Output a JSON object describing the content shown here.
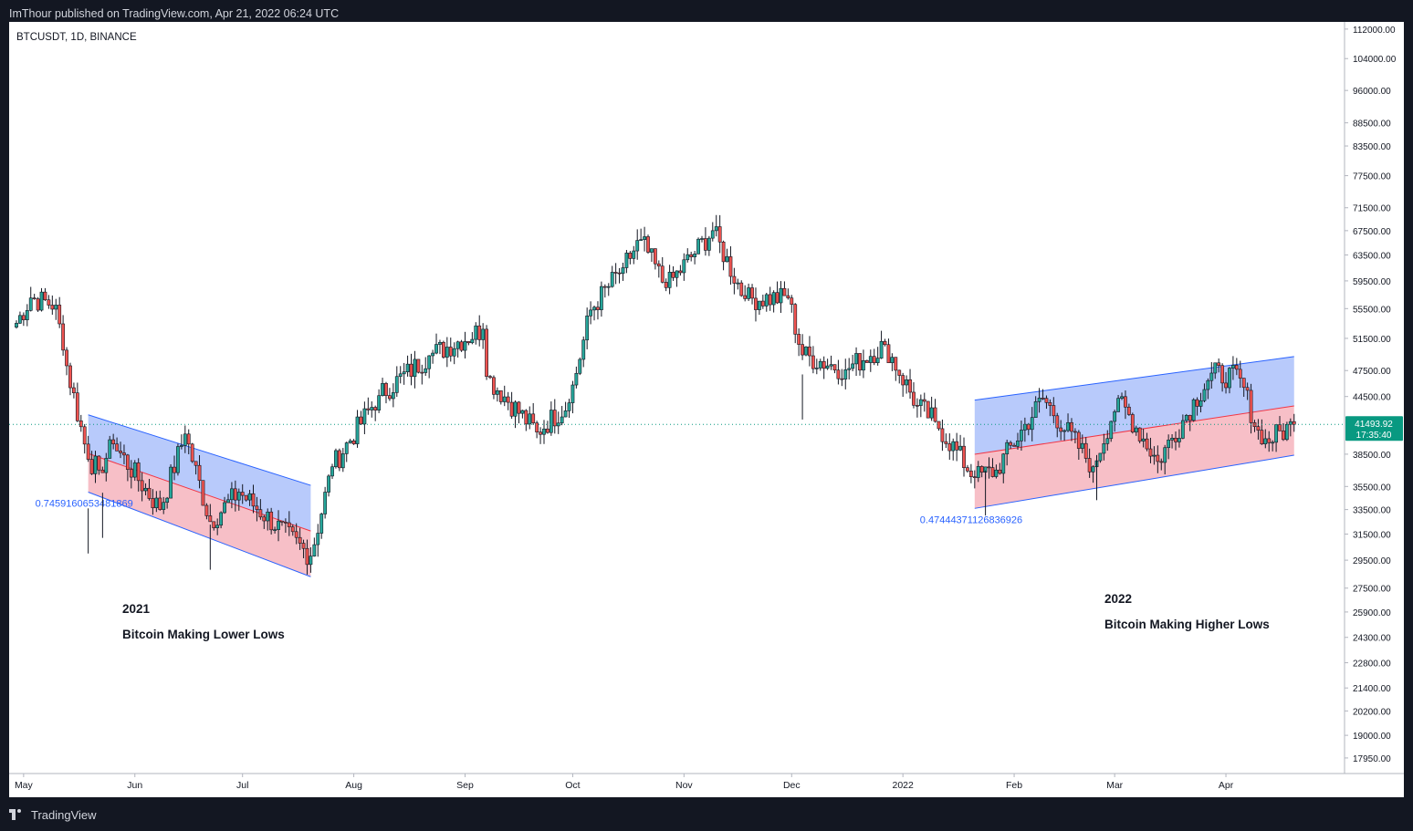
{
  "header": {
    "publisher": "ImThour published on TradingView.com, Apr 21, 2022 06:24 UTC"
  },
  "footer": {
    "brand": "TradingView"
  },
  "chart_data": {
    "type": "candlestick",
    "symbol_label": "BTCUSDT, 1D, BINANCE",
    "y_scale": "log",
    "ylim": [
      17500,
      113000
    ],
    "y_ticks": [
      "112000.00",
      "104000.00",
      "96000.00",
      "88500.00",
      "83500.00",
      "77500.00",
      "71500.00",
      "67500.00",
      "63500.00",
      "59500.00",
      "55500.00",
      "51500.00",
      "47500.00",
      "44500.00",
      "38500.00",
      "35500.00",
      "33500.00",
      "31500.00",
      "29500.00",
      "27500.00",
      "25900.00",
      "24300.00",
      "22800.00",
      "21400.00",
      "20200.00",
      "19000.00",
      "17950.00"
    ],
    "x_ticks": [
      "May",
      "Jun",
      "Jul",
      "Aug",
      "Sep",
      "Oct",
      "Nov",
      "Dec",
      "2022",
      "Feb",
      "Mar",
      "Apr"
    ],
    "x_range": [
      "2021-04-29",
      "2022-05-01"
    ],
    "last_price": {
      "value": "41493.92",
      "countdown": "17:35:40"
    },
    "key_points": [
      {
        "date": "2021-04-29",
        "close": 53500
      },
      {
        "date": "2021-05-03",
        "close": 57000
      },
      {
        "date": "2021-05-10",
        "close": 56000
      },
      {
        "date": "2021-05-12",
        "close": 50000
      },
      {
        "date": "2021-05-19",
        "close": 38000
      },
      {
        "date": "2021-05-22",
        "close": 37000
      },
      {
        "date": "2021-05-26",
        "close": 39500
      },
      {
        "date": "2021-06-08",
        "close": 33500
      },
      {
        "date": "2021-06-15",
        "close": 40500
      },
      {
        "date": "2021-06-22",
        "close": 32500
      },
      {
        "date": "2021-06-30",
        "close": 35000
      },
      {
        "date": "2021-07-20",
        "close": 29800
      },
      {
        "date": "2021-07-26",
        "close": 37300
      },
      {
        "date": "2021-08-08",
        "close": 44600
      },
      {
        "date": "2021-08-22",
        "close": 49300
      },
      {
        "date": "2021-09-06",
        "close": 52700
      },
      {
        "date": "2021-09-07",
        "close": 46800
      },
      {
        "date": "2021-09-21",
        "close": 40700
      },
      {
        "date": "2021-09-30",
        "close": 43800
      },
      {
        "date": "2021-10-06",
        "close": 55300
      },
      {
        "date": "2021-10-15",
        "close": 61500
      },
      {
        "date": "2021-10-20",
        "close": 66000
      },
      {
        "date": "2021-10-27",
        "close": 58500
      },
      {
        "date": "2021-11-09",
        "close": 67500
      },
      {
        "date": "2021-11-18",
        "close": 56900
      },
      {
        "date": "2021-11-30",
        "close": 57000
      },
      {
        "date": "2021-12-04",
        "close": 49400
      },
      {
        "date": "2021-12-16",
        "close": 47600
      },
      {
        "date": "2021-12-27",
        "close": 50700
      },
      {
        "date": "2022-01-05",
        "close": 43500
      },
      {
        "date": "2022-01-10",
        "close": 41800
      },
      {
        "date": "2022-01-21",
        "close": 36300
      },
      {
        "date": "2022-01-27",
        "close": 37000
      },
      {
        "date": "2022-02-09",
        "close": 44300
      },
      {
        "date": "2022-02-23",
        "close": 37300
      },
      {
        "date": "2022-03-02",
        "close": 44300
      },
      {
        "date": "2022-03-13",
        "close": 37800
      },
      {
        "date": "2022-03-28",
        "close": 47200
      },
      {
        "date": "2022-04-05",
        "close": 46600
      },
      {
        "date": "2022-04-11",
        "close": 39500
      },
      {
        "date": "2022-04-20",
        "close": 41494
      }
    ],
    "drawings": [
      {
        "type": "channel",
        "direction": "down",
        "upper": [
          {
            "date": "2021-05-19",
            "price": 42500
          },
          {
            "date": "2021-07-20",
            "price": 35600
          }
        ],
        "lower": [
          {
            "date": "2021-05-19",
            "price": 35000
          },
          {
            "date": "2021-07-20",
            "price": 28300
          }
        ],
        "top_color": "#b4c7fb",
        "bottom_color": "#f7bcc4",
        "label": "0.7459160653481869"
      },
      {
        "type": "channel",
        "direction": "up",
        "upper": [
          {
            "date": "2022-01-21",
            "price": 44100
          },
          {
            "date": "2022-04-20",
            "price": 49200
          }
        ],
        "lower": [
          {
            "date": "2022-01-21",
            "price": 33600
          },
          {
            "date": "2022-04-20",
            "price": 38400
          }
        ],
        "top_color": "#b4c7fb",
        "bottom_color": "#f7bcc4",
        "label": "0.47444371126836926"
      }
    ],
    "annotations": [
      {
        "title": "2021",
        "text": "Bitcoin Making Lower Lows"
      },
      {
        "title": "2022",
        "text": "Bitcoin Making Higher Lows"
      }
    ],
    "colors": {
      "up": "#26a69a",
      "down": "#ef5350",
      "wick": "#131722",
      "channel_line": "#2962ff",
      "midline": "#f23645",
      "price_line": "#089981"
    }
  }
}
